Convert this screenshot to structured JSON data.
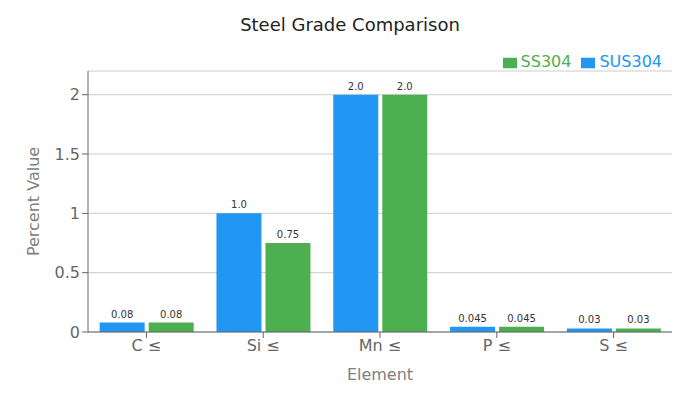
{
  "chart_data": {
    "type": "bar",
    "title": "Steel Grade Comparison",
    "xlabel": "Element",
    "ylabel": "Percent Value",
    "categories": [
      "C ≤",
      "Si ≤",
      "Mn ≤",
      "P ≤",
      "S ≤"
    ],
    "series": [
      {
        "name": "SUS304",
        "color": "#2196F3",
        "values": [
          0.08,
          1.0,
          2.0,
          0.045,
          0.03
        ],
        "value_labels": [
          "0.08",
          "1.0",
          "2.0",
          "0.045",
          "0.03"
        ]
      },
      {
        "name": "SS304",
        "color": "#4CAF50",
        "values": [
          0.08,
          0.75,
          2.0,
          0.045,
          0.03
        ],
        "value_labels": [
          "0.08",
          "0.75",
          "2.0",
          "0.045",
          "0.03"
        ]
      }
    ],
    "ylim": [
      0,
      2.2
    ],
    "yticks": [
      0,
      0.5,
      1,
      1.5,
      2
    ],
    "grid": true,
    "legend": "upper right",
    "data_labels": true
  }
}
